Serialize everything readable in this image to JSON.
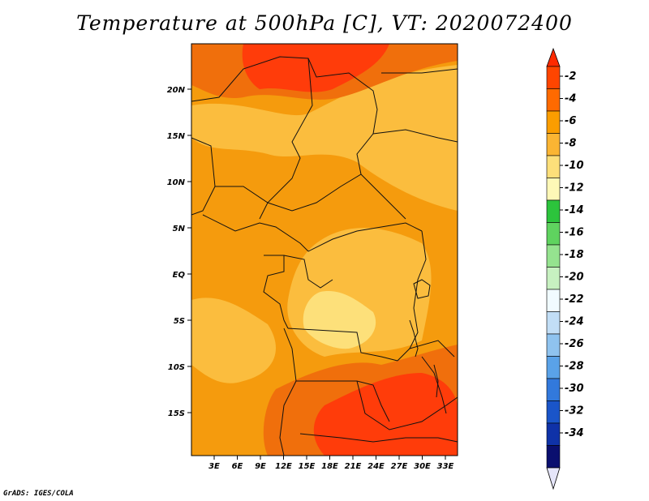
{
  "title": "Temperature at 500hPa [C], VT: 2020072400",
  "credit": "GrADS: IGES/COLA",
  "map": {
    "lon_range": [
      0,
      35
    ],
    "lat_range": [
      -20,
      25
    ],
    "lat_ticks": [
      "20N",
      "15N",
      "10N",
      "5N",
      "EQ",
      "5S",
      "10S",
      "15S"
    ],
    "lon_ticks": [
      "3E",
      "6E",
      "9E",
      "12E",
      "15E",
      "18E",
      "21E",
      "24E",
      "27E",
      "30E",
      "33E"
    ],
    "field_colors": {
      "-2": "#ff3c0a",
      "-4": "#f06f0c",
      "-6": "#f59b0d",
      "-8": "#fbbd3e",
      "-10": "#fde07a"
    }
  },
  "colorbar": {
    "levels": [
      "-2",
      "-4",
      "-6",
      "-8",
      "-10",
      "-12",
      "-14",
      "-16",
      "-18",
      "-20",
      "-22",
      "-24",
      "-26",
      "-28",
      "-30",
      "-32",
      "-34"
    ],
    "colors": [
      "#ff4500",
      "#ff6a00",
      "#fb9d00",
      "#fbb533",
      "#fddf7a",
      "#fef8b7",
      "#2cc43c",
      "#5fd35f",
      "#95e38f",
      "#c7f1c1",
      "#f1fbff",
      "#c2def6",
      "#8fc3ef",
      "#5aa2e8",
      "#3279dc",
      "#1a55c9",
      "#0f32a8",
      "#0a0f6f"
    ],
    "top_arrow_color": "#ff2a00",
    "bottom_arrow_color": "#e6e6fa"
  }
}
